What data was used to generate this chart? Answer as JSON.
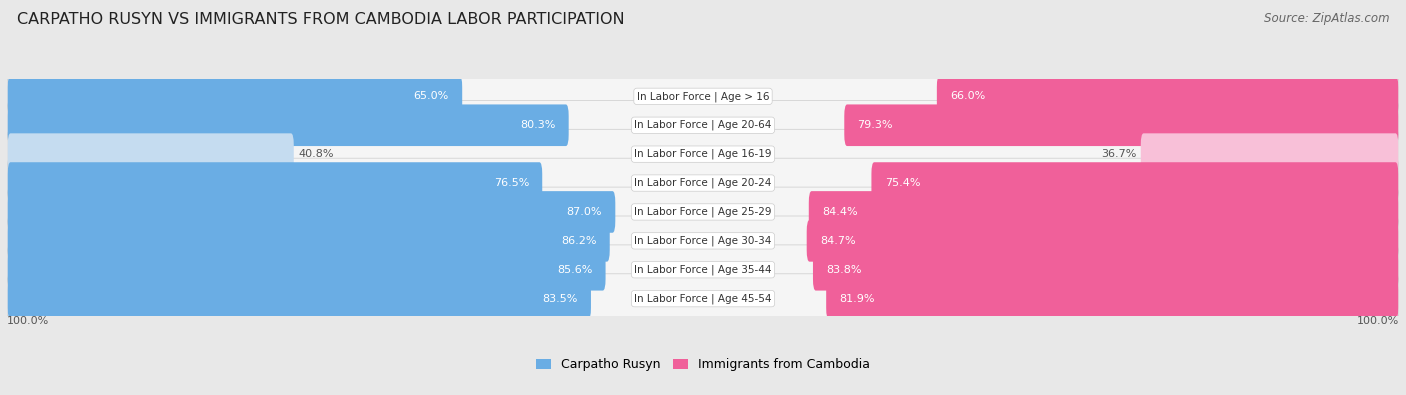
{
  "title": "CARPATHO RUSYN VS IMMIGRANTS FROM CAMBODIA LABOR PARTICIPATION",
  "source": "Source: ZipAtlas.com",
  "categories": [
    "In Labor Force | Age > 16",
    "In Labor Force | Age 20-64",
    "In Labor Force | Age 16-19",
    "In Labor Force | Age 20-24",
    "In Labor Force | Age 25-29",
    "In Labor Force | Age 30-34",
    "In Labor Force | Age 35-44",
    "In Labor Force | Age 45-54"
  ],
  "left_values": [
    65.0,
    80.3,
    40.8,
    76.5,
    87.0,
    86.2,
    85.6,
    83.5
  ],
  "right_values": [
    66.0,
    79.3,
    36.7,
    75.4,
    84.4,
    84.7,
    83.8,
    81.9
  ],
  "left_color": "#6aade4",
  "right_color": "#f0609a",
  "left_color_light": "#c5dcf0",
  "right_color_light": "#f8c0d8",
  "label_left": "Carpatho Rusyn",
  "label_right": "Immigrants from Cambodia",
  "bg_color": "#e8e8e8",
  "row_bg_color": "#f0f0f0",
  "max_val": 100.0,
  "title_fontsize": 11.5,
  "source_fontsize": 8.5,
  "value_fontsize": 8,
  "cat_fontsize": 7.5
}
